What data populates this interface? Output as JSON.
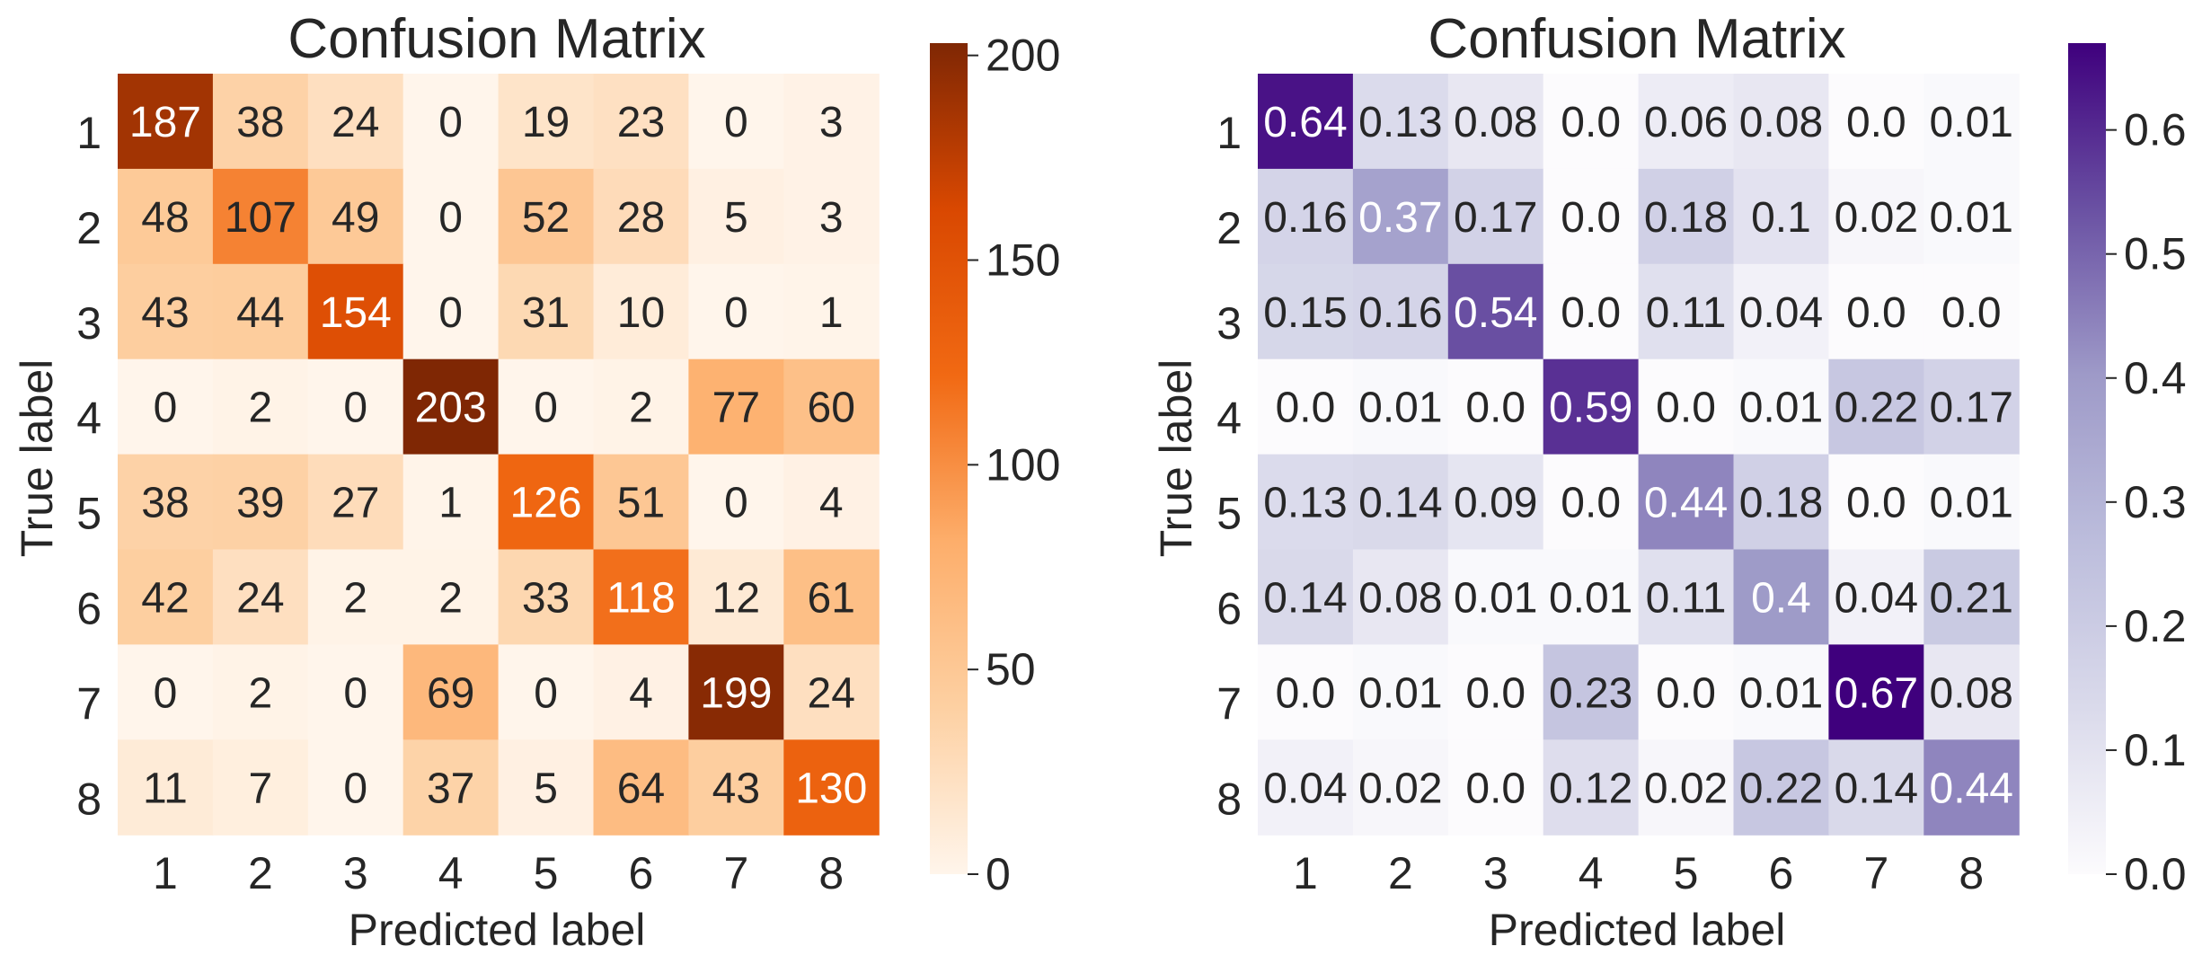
{
  "chart_data": [
    {
      "type": "heatmap",
      "title": "Confusion Matrix",
      "xlabel": "Predicted label",
      "ylabel": "True label",
      "x_categories": [
        "1",
        "2",
        "3",
        "4",
        "5",
        "6",
        "7",
        "8"
      ],
      "y_categories": [
        "1",
        "2",
        "3",
        "4",
        "5",
        "6",
        "7",
        "8"
      ],
      "values": [
        [
          187,
          38,
          24,
          0,
          19,
          23,
          0,
          3
        ],
        [
          48,
          107,
          49,
          0,
          52,
          28,
          5,
          3
        ],
        [
          43,
          44,
          154,
          0,
          31,
          10,
          0,
          1
        ],
        [
          0,
          2,
          0,
          203,
          0,
          2,
          77,
          60
        ],
        [
          38,
          39,
          27,
          1,
          126,
          51,
          0,
          4
        ],
        [
          42,
          24,
          2,
          2,
          33,
          118,
          12,
          61
        ],
        [
          0,
          2,
          0,
          69,
          0,
          4,
          199,
          24
        ],
        [
          11,
          7,
          0,
          37,
          5,
          64,
          43,
          130
        ]
      ],
      "colormap": [
        "#fff5eb",
        "#fdd0a2",
        "#fdae6b",
        "#f16913",
        "#d94801",
        "#7f2704"
      ],
      "vmin": 0,
      "vmax": 203,
      "colorbar_ticks": [
        "0",
        "50",
        "100",
        "150",
        "200"
      ],
      "colorbar_tick_values": [
        0,
        50,
        100,
        150,
        200
      ],
      "grid": false
    },
    {
      "type": "heatmap",
      "title": "Confusion Matrix",
      "xlabel": "Predicted label",
      "ylabel": "True label",
      "x_categories": [
        "1",
        "2",
        "3",
        "4",
        "5",
        "6",
        "7",
        "8"
      ],
      "y_categories": [
        "1",
        "2",
        "3",
        "4",
        "5",
        "6",
        "7",
        "8"
      ],
      "values": [
        [
          "0.64",
          "0.13",
          "0.08",
          "0.0",
          "0.06",
          "0.08",
          "0.0",
          "0.01"
        ],
        [
          "0.16",
          "0.37",
          "0.17",
          "0.0",
          "0.18",
          "0.1",
          "0.02",
          "0.01"
        ],
        [
          "0.15",
          "0.16",
          "0.54",
          "0.0",
          "0.11",
          "0.04",
          "0.0",
          "0.0"
        ],
        [
          "0.0",
          "0.01",
          "0.0",
          "0.59",
          "0.0",
          "0.01",
          "0.22",
          "0.17"
        ],
        [
          "0.13",
          "0.14",
          "0.09",
          "0.0",
          "0.44",
          "0.18",
          "0.0",
          "0.01"
        ],
        [
          "0.14",
          "0.08",
          "0.01",
          "0.01",
          "0.11",
          "0.4",
          "0.04",
          "0.21"
        ],
        [
          "0.0",
          "0.01",
          "0.0",
          "0.23",
          "0.0",
          "0.01",
          "0.67",
          "0.08"
        ],
        [
          "0.04",
          "0.02",
          "0.0",
          "0.12",
          "0.02",
          "0.22",
          "0.14",
          "0.44"
        ]
      ],
      "colormap": [
        "#fcfbfd",
        "#dadaeb",
        "#bcbddc",
        "#9e9ac8",
        "#6a51a3",
        "#3f007d"
      ],
      "vmin": 0,
      "vmax": 0.67,
      "colorbar_ticks": [
        "0.0",
        "0.1",
        "0.2",
        "0.3",
        "0.4",
        "0.5",
        "0.6"
      ],
      "colorbar_tick_values": [
        0,
        0.1,
        0.2,
        0.3,
        0.4,
        0.5,
        0.6
      ],
      "grid": false
    }
  ]
}
